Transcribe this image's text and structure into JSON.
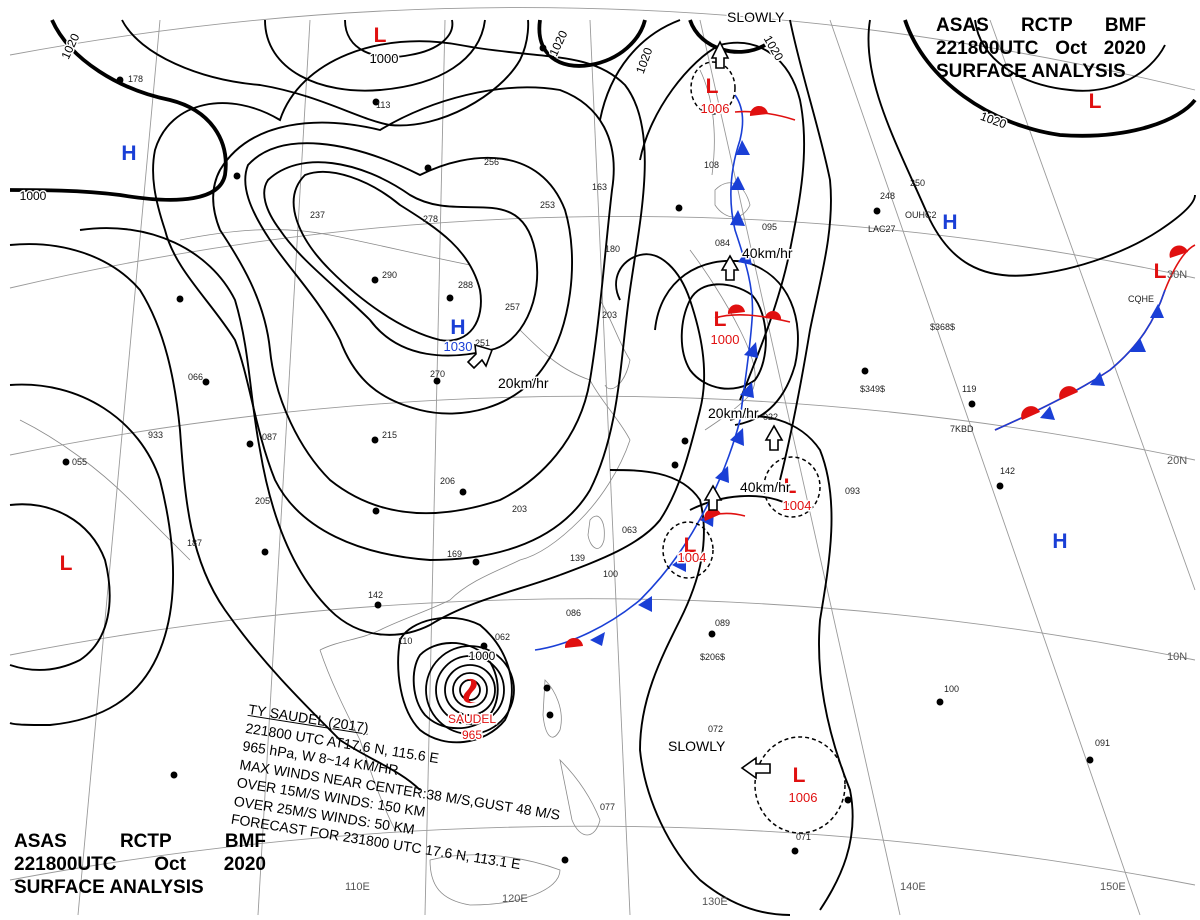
{
  "header": {
    "top_right": {
      "line1": [
        "ASAS",
        "RCTP",
        "BMF"
      ],
      "line2": [
        "221800UTC",
        "Oct",
        "2020"
      ],
      "line3": "SURFACE ANALYSIS"
    },
    "bottom_left": {
      "line1": [
        "ASAS",
        "RCTP",
        "BMF"
      ],
      "line2": [
        "221800UTC",
        "Oct",
        "2020"
      ],
      "line3": "SURFACE ANALYSIS"
    }
  },
  "pressure_centers": [
    {
      "type": "H",
      "value": "1030",
      "kind": "high"
    },
    {
      "type": "H",
      "value": "",
      "kind": "high"
    },
    {
      "type": "H",
      "value": "",
      "kind": "high"
    },
    {
      "type": "H",
      "value": "",
      "kind": "high"
    },
    {
      "type": "L",
      "value": "1000",
      "kind": "low"
    },
    {
      "type": "L",
      "value": "1006",
      "kind": "low"
    },
    {
      "type": "L",
      "value": "1000",
      "kind": "low"
    },
    {
      "type": "L",
      "value": "1004",
      "kind": "low"
    },
    {
      "type": "L",
      "value": "1004",
      "kind": "low"
    },
    {
      "type": "L",
      "value": "1006",
      "kind": "low"
    },
    {
      "type": "L",
      "value": "",
      "kind": "low"
    },
    {
      "type": "L",
      "value": "",
      "kind": "low"
    },
    {
      "type": "L",
      "value": "",
      "kind": "low"
    }
  ],
  "isobar_labels": [
    "1020",
    "1020",
    "1020",
    "1020",
    "1020",
    "1000",
    "1000"
  ],
  "movement_labels": [
    "SLOWLY",
    "40km/hr",
    "20km/hr",
    "20km/hr",
    "40km/hr",
    "SLOWLY"
  ],
  "grid_labels": {
    "longitudes": [
      "110E",
      "120E",
      "130E",
      "140E",
      "150E"
    ],
    "latitudes": [
      "30N",
      "20N",
      "10N"
    ]
  },
  "typhoon": {
    "name": "SAUDEL",
    "pressure": "965",
    "info_lines": [
      "TY SAUDEL  (2017)",
      "221800 UTC  AT17.6 N, 115.6 E",
      "965 hPa, W  8~14 KM/HR",
      "MAX WINDS NEAR CENTER:38 M/S,GUST 48 M/S",
      "OVER 15M/S WINDS: 150 KM",
      "OVER 25M/S WINDS: 50 KM",
      "FORECAST FOR 231800 UTC 17.6 N, 113.1 E"
    ]
  },
  "station_labels": [
    "178",
    "113",
    "256",
    "237",
    "278",
    "253",
    "163",
    "180",
    "290",
    "288",
    "257",
    "203",
    "251",
    "270",
    "066",
    "933",
    "215",
    "087",
    "205",
    "206",
    "203",
    "187",
    "169",
    "142",
    "110",
    "062",
    "055",
    "139",
    "100",
    "086",
    "063",
    "089",
    "072",
    "093",
    "142",
    "248",
    "250",
    "119",
    "100",
    "091",
    "071",
    "095",
    "084",
    "108",
    "022",
    "077"
  ],
  "station_ids": [
    "LAC27",
    "OUHC2",
    "CQHE",
    "$368$",
    "$349$",
    "7KBD",
    "$206$"
  ],
  "colors": {
    "isobar": "#000000",
    "high": "#1a3fd6",
    "low": "#e01010",
    "cold_front": "#1a3fd6",
    "warm_front": "#e01010",
    "grid": "#9a9a9a"
  }
}
